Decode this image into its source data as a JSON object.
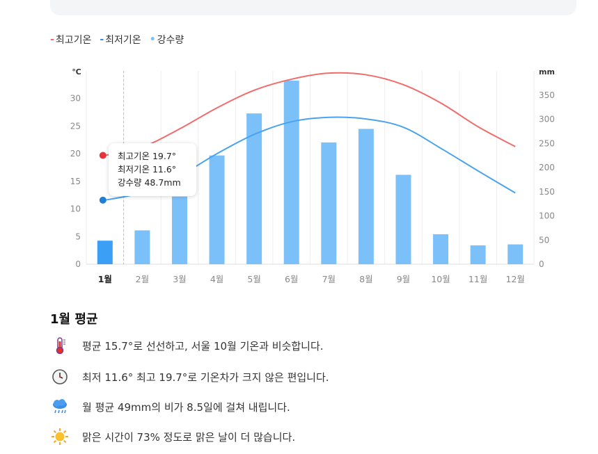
{
  "legend": [
    {
      "mark": "-",
      "label": "최고기온",
      "color": "#f26b6b"
    },
    {
      "mark": "-",
      "label": "최저기온",
      "color": "#2e8ae6"
    },
    {
      "mark": "•",
      "label": "강수량",
      "color": "#7cc0f9"
    }
  ],
  "chart_data": {
    "type": "bar+line",
    "categories": [
      "1월",
      "2월",
      "3월",
      "4월",
      "5월",
      "6월",
      "7월",
      "8월",
      "9월",
      "10월",
      "11월",
      "12월"
    ],
    "left_axis": {
      "unit": "℃",
      "ylim": [
        0,
        35
      ],
      "ticks": [
        0,
        5,
        10,
        15,
        20,
        25,
        30
      ]
    },
    "right_axis": {
      "unit": "mm",
      "ylim": [
        0,
        400
      ],
      "ticks": [
        0,
        50,
        100,
        150,
        200,
        250,
        300,
        350
      ]
    },
    "series": [
      {
        "name": "최고기온",
        "type": "line",
        "axis": "left",
        "color": "#f26b6b",
        "values": [
          19.7,
          21.2,
          24.5,
          28.3,
          31.5,
          33.5,
          34.6,
          34.3,
          32.5,
          29.2,
          24.9,
          21.3
        ]
      },
      {
        "name": "최저기온",
        "type": "line",
        "axis": "left",
        "color": "#4aa3ee",
        "values": [
          11.6,
          13.0,
          16.0,
          20.0,
          23.5,
          25.8,
          26.6,
          26.3,
          24.8,
          21.0,
          16.9,
          12.9
        ]
      },
      {
        "name": "강수량",
        "type": "bar",
        "axis": "right",
        "color": "#7cc0f9",
        "highlight_color": "#3b9ff5",
        "values": [
          48.7,
          70,
          140,
          225,
          312,
          380,
          252,
          280,
          185,
          62,
          39,
          41
        ]
      }
    ],
    "selected_index": 0
  },
  "tooltip": {
    "high": "최고기온 19.7°",
    "low": "최저기온 11.6°",
    "rain": "강수량 48.7mm"
  },
  "summary": {
    "title": "1월 평균",
    "facts": [
      {
        "icon": "thermometer-icon",
        "text": "평균 15.7°로 선선하고, 서울 10월 기온과 비슷합니다."
      },
      {
        "icon": "clock-icon",
        "text": "최저 11.6° 최고 19.7°로 기온차가 크지 않은 편입니다."
      },
      {
        "icon": "rain-cloud-icon",
        "text": "월 평균 49mm의 비가 8.5일에 걸쳐 내립니다."
      },
      {
        "icon": "sun-icon",
        "text": "맑은 시간이 73% 정도로 맑은 날이 더 많습니다."
      }
    ]
  }
}
